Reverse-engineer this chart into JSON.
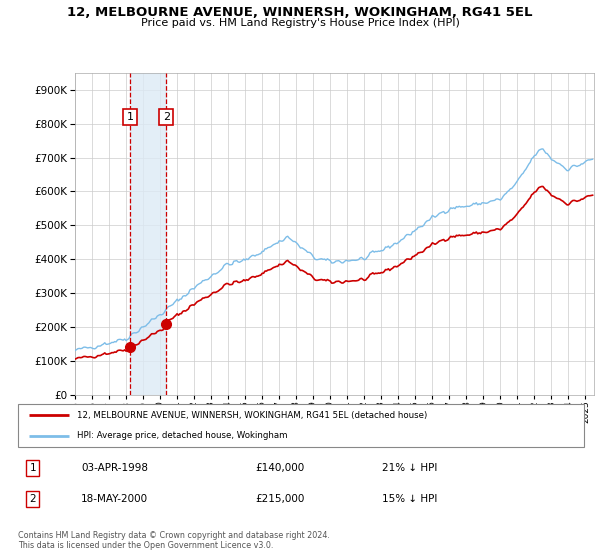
{
  "title_line1": "12, MELBOURNE AVENUE, WINNERSH, WOKINGHAM, RG41 5EL",
  "title_line2": "Price paid vs. HM Land Registry's House Price Index (HPI)",
  "ylim": [
    0,
    950000
  ],
  "yticks": [
    0,
    100000,
    200000,
    300000,
    400000,
    500000,
    600000,
    700000,
    800000,
    900000
  ],
  "ytick_labels": [
    "£0",
    "£100K",
    "£200K",
    "£300K",
    "£400K",
    "£500K",
    "£600K",
    "£700K",
    "£800K",
    "£900K"
  ],
  "sale1_year": 1998.25,
  "sale1_price": 140000,
  "sale2_year": 2000.37,
  "sale2_price": 215000,
  "legend_line1": "12, MELBOURNE AVENUE, WINNERSH, WOKINGHAM, RG41 5EL (detached house)",
  "legend_line2": "HPI: Average price, detached house, Wokingham",
  "table_row1": [
    "1",
    "03-APR-1998",
    "£140,000",
    "21% ↓ HPI"
  ],
  "table_row2": [
    "2",
    "18-MAY-2000",
    "£215,000",
    "15% ↓ HPI"
  ],
  "footnote": "Contains HM Land Registry data © Crown copyright and database right 2024.\nThis data is licensed under the Open Government Licence v3.0.",
  "hpi_color": "#7dbde8",
  "price_color": "#cc0000",
  "vline_color": "#cc0000",
  "bg_shade_color": "#ddeaf5",
  "grid_color": "#cccccc",
  "marker_color": "#cc0000"
}
